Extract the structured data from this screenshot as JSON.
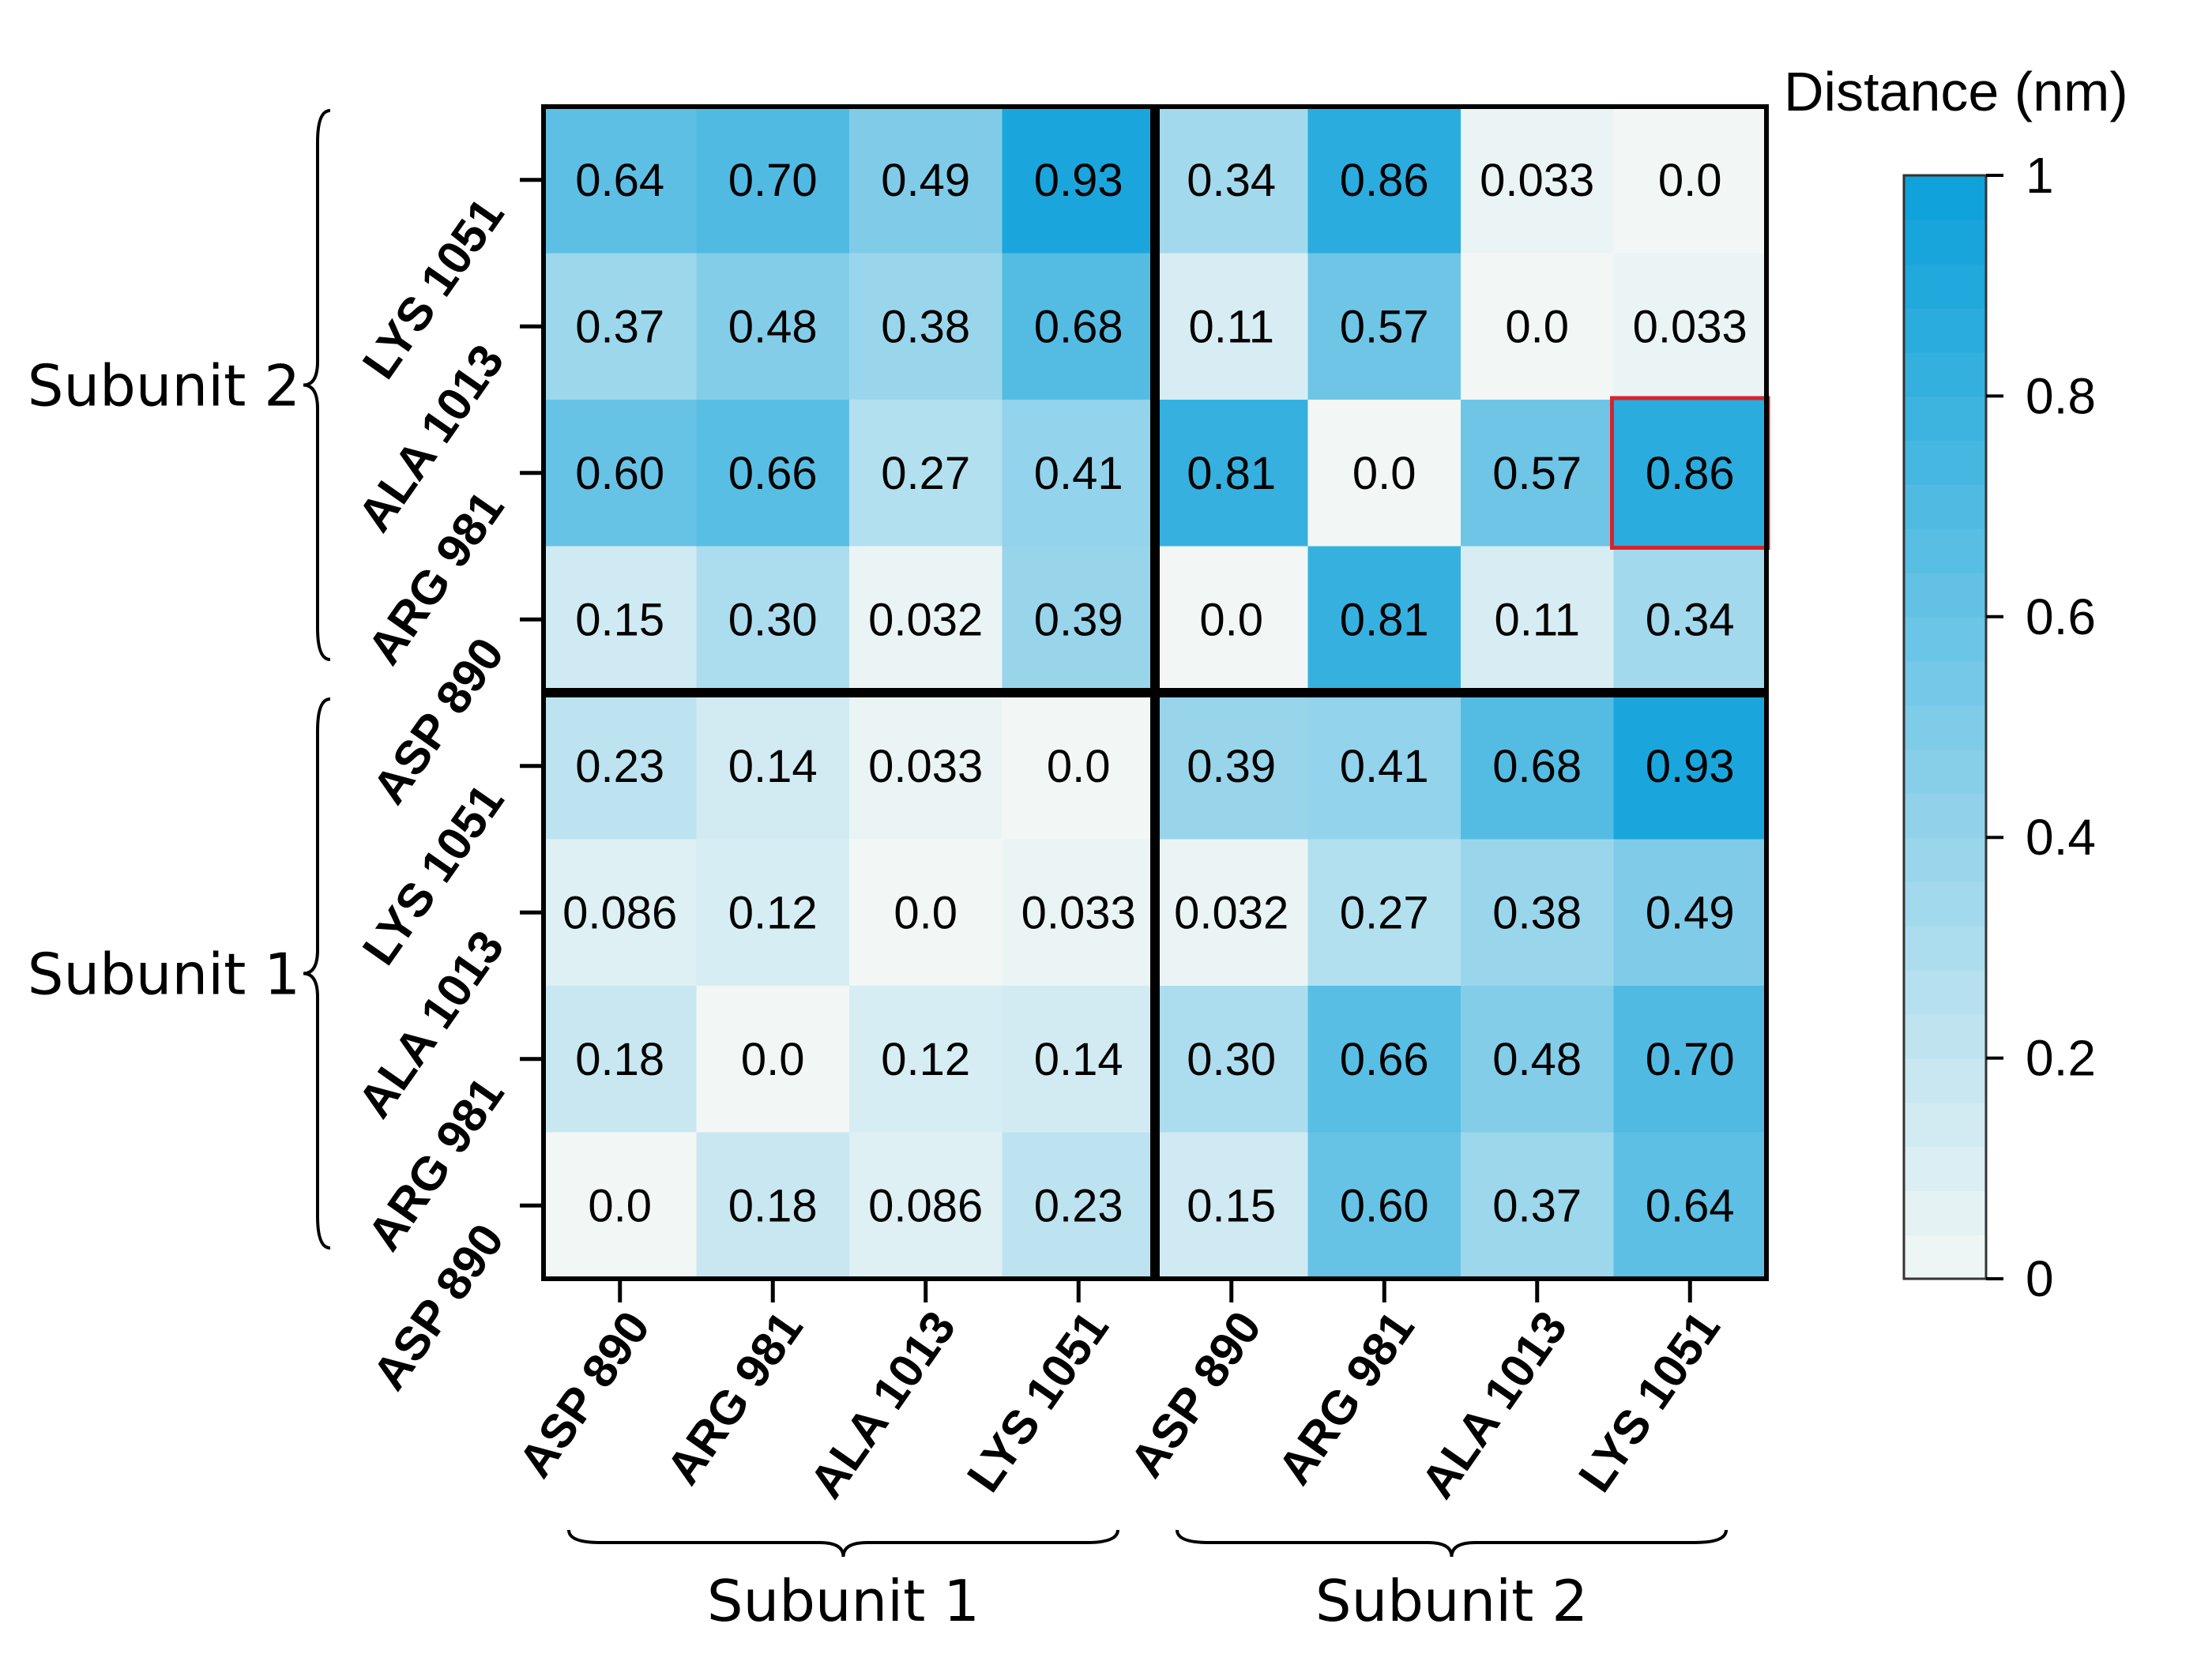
{
  "chart_data": {
    "type": "heatmap",
    "colorbar_title": "Distance (nm)",
    "colorbar_range": [
      0,
      1
    ],
    "colorbar_ticks": [
      "0",
      "0.2",
      "0.4",
      "0.6",
      "0.8",
      "1"
    ],
    "colorbar_tick_values": [
      0,
      0.2,
      0.4,
      0.6,
      0.8,
      1
    ],
    "colors": {
      "low": "#f2f7f6",
      "high": "#0aa0da",
      "highlight": "#d9232a",
      "separator": "#000000"
    },
    "x_labels": [
      "ASP 890",
      "ARG 981",
      "ALA 1013",
      "LYS 1051",
      "ASP 890",
      "ARG 981",
      "ALA 1013",
      "LYS 1051"
    ],
    "y_labels_top_to_bottom": [
      "LYS 1051",
      "ALA 1013",
      "ARG 981",
      "ASP 890",
      "LYS 1051",
      "ALA 1013",
      "ARG 981",
      "ASP 890"
    ],
    "x_groups": [
      "Subunit 1",
      "Subunit 2"
    ],
    "y_groups_top_to_bottom": [
      "Subunit 2",
      "Subunit 1"
    ],
    "rows_top_to_bottom": [
      {
        "values": [
          0.64,
          0.7,
          0.49,
          0.93,
          0.34,
          0.86,
          0.033,
          0.0
        ],
        "labels": [
          "0.64",
          "0.70",
          "0.49",
          "0.93",
          "0.34",
          "0.86",
          "0.033",
          "0.0"
        ]
      },
      {
        "values": [
          0.37,
          0.48,
          0.38,
          0.68,
          0.11,
          0.57,
          0.0,
          0.033
        ],
        "labels": [
          "0.37",
          "0.48",
          "0.38",
          "0.68",
          "0.11",
          "0.57",
          "0.0",
          "0.033"
        ]
      },
      {
        "values": [
          0.6,
          0.66,
          0.27,
          0.41,
          0.81,
          0.0,
          0.57,
          0.86
        ],
        "labels": [
          "0.60",
          "0.66",
          "0.27",
          "0.41",
          "0.81",
          "0.0",
          "0.57",
          "0.86"
        ]
      },
      {
        "values": [
          0.15,
          0.3,
          0.032,
          0.39,
          0.0,
          0.81,
          0.11,
          0.34
        ],
        "labels": [
          "0.15",
          "0.30",
          "0.032",
          "0.39",
          "0.0",
          "0.81",
          "0.11",
          "0.34"
        ]
      },
      {
        "values": [
          0.23,
          0.14,
          0.033,
          0.0,
          0.39,
          0.41,
          0.68,
          0.93
        ],
        "labels": [
          "0.23",
          "0.14",
          "0.033",
          "0.0",
          "0.39",
          "0.41",
          "0.68",
          "0.93"
        ]
      },
      {
        "values": [
          0.086,
          0.12,
          0.0,
          0.033,
          0.032,
          0.27,
          0.38,
          0.49
        ],
        "labels": [
          "0.086",
          "0.12",
          "0.0",
          "0.033",
          "0.032",
          "0.27",
          "0.38",
          "0.49"
        ]
      },
      {
        "values": [
          0.18,
          0.0,
          0.12,
          0.14,
          0.3,
          0.66,
          0.48,
          0.7
        ],
        "labels": [
          "0.18",
          "0.0",
          "0.12",
          "0.14",
          "0.30",
          "0.66",
          "0.48",
          "0.70"
        ]
      },
      {
        "values": [
          0.0,
          0.18,
          0.086,
          0.23,
          0.15,
          0.6,
          0.37,
          0.64
        ],
        "labels": [
          "0.0",
          "0.18",
          "0.086",
          "0.23",
          "0.15",
          "0.60",
          "0.37",
          "0.64"
        ]
      }
    ],
    "highlight": {
      "row": 2,
      "col": 7
    }
  }
}
